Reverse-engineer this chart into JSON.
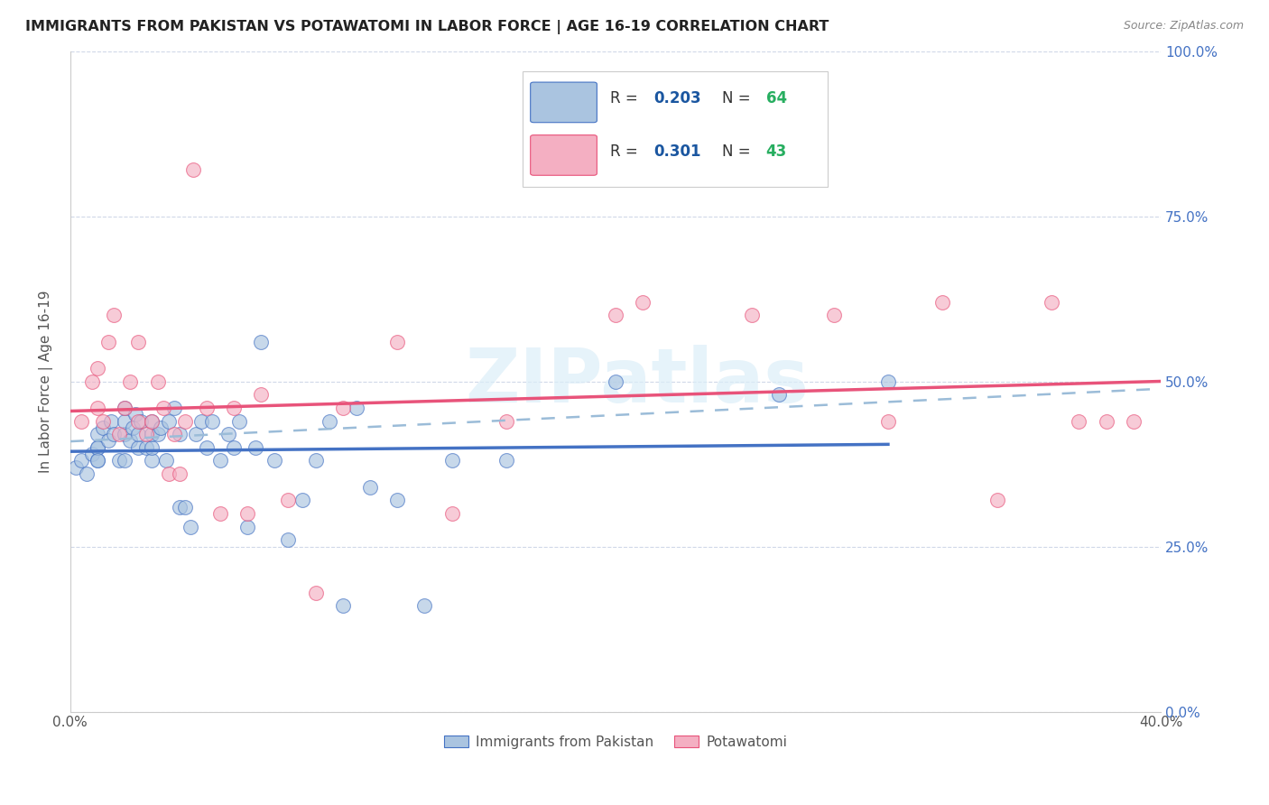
{
  "title": "IMMIGRANTS FROM PAKISTAN VS POTAWATOMI IN LABOR FORCE | AGE 16-19 CORRELATION CHART",
  "source": "Source: ZipAtlas.com",
  "ylabel": "In Labor Force | Age 16-19",
  "xlim": [
    0.0,
    0.4
  ],
  "ylim": [
    0.0,
    1.0
  ],
  "y_tick_positions": [
    0.0,
    0.25,
    0.5,
    0.75,
    1.0
  ],
  "y_tick_labels_right": [
    "0.0%",
    "25.0%",
    "50.0%",
    "75.0%",
    "100.0%"
  ],
  "x_tick_positions": [
    0.0,
    0.05,
    0.1,
    0.15,
    0.2,
    0.25,
    0.3,
    0.35,
    0.4
  ],
  "x_tick_labels": [
    "0.0%",
    "",
    "",
    "",
    "",
    "",
    "",
    "",
    "40.0%"
  ],
  "pakistan_color": "#aac4e0",
  "potawatomi_color": "#f4afc2",
  "pakistan_line_color": "#4472c4",
  "potawatomi_line_color": "#e8537a",
  "dashed_line_color": "#9bbcd8",
  "R_pakistan": 0.203,
  "N_pakistan": 64,
  "R_potawatomi": 0.301,
  "N_potawatomi": 43,
  "legend_r_color": "#1a56a0",
  "legend_n_color": "#27ae60",
  "watermark": "ZIPatlas",
  "pakistan_x": [
    0.002,
    0.004,
    0.006,
    0.008,
    0.01,
    0.01,
    0.01,
    0.01,
    0.01,
    0.012,
    0.014,
    0.015,
    0.016,
    0.018,
    0.02,
    0.02,
    0.02,
    0.02,
    0.022,
    0.023,
    0.024,
    0.025,
    0.025,
    0.026,
    0.028,
    0.03,
    0.03,
    0.03,
    0.03,
    0.032,
    0.033,
    0.035,
    0.036,
    0.038,
    0.04,
    0.04,
    0.042,
    0.044,
    0.046,
    0.048,
    0.05,
    0.052,
    0.055,
    0.058,
    0.06,
    0.062,
    0.065,
    0.068,
    0.07,
    0.075,
    0.08,
    0.085,
    0.09,
    0.095,
    0.1,
    0.105,
    0.11,
    0.12,
    0.13,
    0.14,
    0.16,
    0.2,
    0.26,
    0.3
  ],
  "pakistan_y": [
    0.37,
    0.38,
    0.36,
    0.39,
    0.38,
    0.4,
    0.42,
    0.4,
    0.38,
    0.43,
    0.41,
    0.44,
    0.42,
    0.38,
    0.42,
    0.44,
    0.46,
    0.38,
    0.41,
    0.43,
    0.45,
    0.4,
    0.42,
    0.44,
    0.4,
    0.38,
    0.4,
    0.42,
    0.44,
    0.42,
    0.43,
    0.38,
    0.44,
    0.46,
    0.31,
    0.42,
    0.31,
    0.28,
    0.42,
    0.44,
    0.4,
    0.44,
    0.38,
    0.42,
    0.4,
    0.44,
    0.28,
    0.4,
    0.56,
    0.38,
    0.26,
    0.32,
    0.38,
    0.44,
    0.16,
    0.46,
    0.34,
    0.32,
    0.16,
    0.38,
    0.38,
    0.5,
    0.48,
    0.5
  ],
  "potawatomi_x": [
    0.004,
    0.008,
    0.01,
    0.01,
    0.012,
    0.014,
    0.016,
    0.018,
    0.02,
    0.022,
    0.025,
    0.025,
    0.028,
    0.03,
    0.032,
    0.034,
    0.036,
    0.038,
    0.04,
    0.042,
    0.045,
    0.05,
    0.055,
    0.06,
    0.065,
    0.07,
    0.08,
    0.09,
    0.1,
    0.12,
    0.14,
    0.16,
    0.2,
    0.21,
    0.25,
    0.28,
    0.3,
    0.32,
    0.34,
    0.36,
    0.37,
    0.38,
    0.39
  ],
  "potawatomi_y": [
    0.44,
    0.5,
    0.46,
    0.52,
    0.44,
    0.56,
    0.6,
    0.42,
    0.46,
    0.5,
    0.44,
    0.56,
    0.42,
    0.44,
    0.5,
    0.46,
    0.36,
    0.42,
    0.36,
    0.44,
    0.82,
    0.46,
    0.3,
    0.46,
    0.3,
    0.48,
    0.32,
    0.18,
    0.46,
    0.56,
    0.3,
    0.44,
    0.6,
    0.62,
    0.6,
    0.6,
    0.44,
    0.62,
    0.32,
    0.62,
    0.44,
    0.44,
    0.44
  ]
}
